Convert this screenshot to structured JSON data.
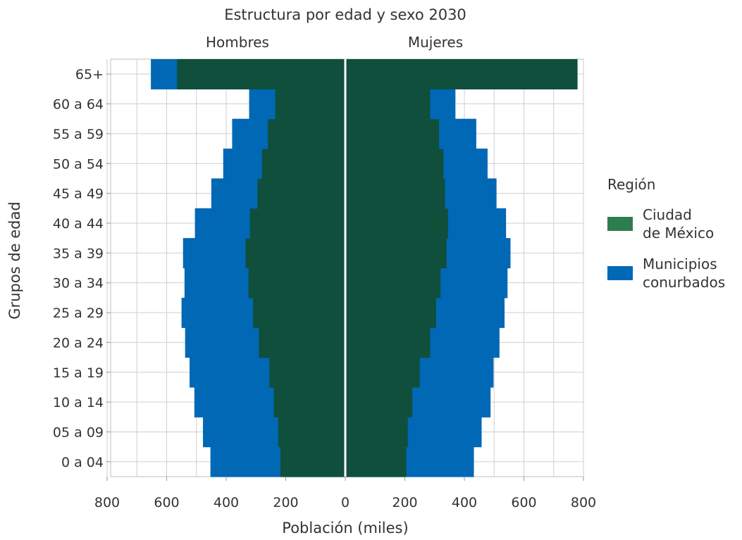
{
  "chart_data": {
    "type": "bar",
    "title": "Estructura por edad y sexo 2030",
    "subtitle_left": "Hombres",
    "subtitle_right": "Mujeres",
    "xlabel": "Población (miles)",
    "ylabel": "Grupos de edad",
    "xlim": [
      -800,
      800
    ],
    "x_ticks": [
      -800,
      -600,
      -400,
      -200,
      0,
      200,
      400,
      600,
      800
    ],
    "x_tick_labels": [
      "800",
      "600",
      "400",
      "200",
      "0",
      "200",
      "400",
      "600",
      "800"
    ],
    "grid": true,
    "categories": [
      "0 a 04",
      "05 a 09",
      "10 a 14",
      "15 a 19",
      "20 a 24",
      "25 a 29",
      "30 a 34",
      "35 a 39",
      "40 a 44",
      "45 a 49",
      "50 a 54",
      "55 a 59",
      "60 a 64",
      "65+"
    ],
    "series": [
      {
        "name": "Ciudad de México",
        "color": "#2e7d4f",
        "fill": "#0f4f3c",
        "hombres": [
          218,
          225,
          240,
          255,
          290,
          310,
          325,
          335,
          320,
          295,
          280,
          260,
          235,
          565
        ],
        "mujeres": [
          205,
          210,
          225,
          250,
          285,
          305,
          320,
          340,
          345,
          335,
          330,
          315,
          285,
          780
        ]
      },
      {
        "name": "Municipios conurbados",
        "color": "#0068b5",
        "hombres": [
          453,
          478,
          507,
          523,
          538,
          550,
          540,
          545,
          505,
          450,
          410,
          380,
          323,
          653
        ],
        "mujeres": [
          432,
          458,
          488,
          498,
          518,
          535,
          545,
          555,
          540,
          508,
          478,
          440,
          370,
          780
        ]
      }
    ],
    "legend_title": "Región",
    "legend_position": "right",
    "legend": [
      "Ciudad\nde México",
      "Municipios\nconurbados"
    ]
  }
}
